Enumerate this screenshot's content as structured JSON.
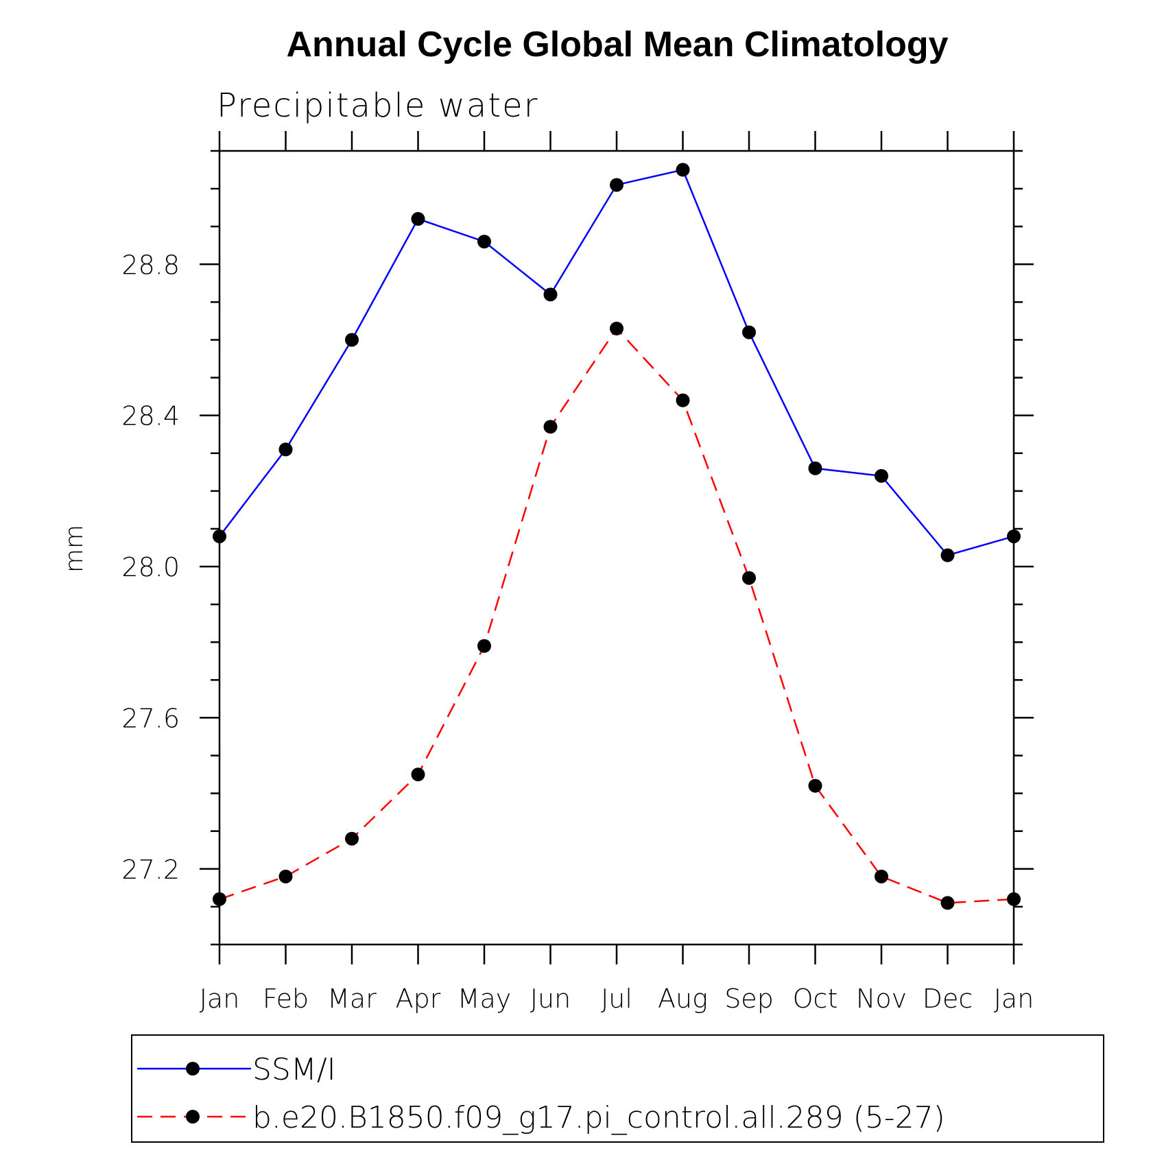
{
  "chart_data": {
    "type": "line",
    "title": "Annual Cycle Global Mean Climatology",
    "subtitle": "Precipitable water",
    "xlabel": "",
    "ylabel": "mm",
    "categories": [
      "Jan",
      "Feb",
      "Mar",
      "Apr",
      "May",
      "Jun",
      "Jul",
      "Aug",
      "Sep",
      "Oct",
      "Nov",
      "Dec",
      "Jan"
    ],
    "ylim": [
      27.0,
      29.1
    ],
    "yticks": [
      27.2,
      27.6,
      28.0,
      28.4,
      28.8
    ],
    "ytick_labels": [
      "27.2",
      "27.6",
      "28.0",
      "28.4",
      "28.8"
    ],
    "y_minor_step": 0.1,
    "grid": false,
    "legend_position": "bottom",
    "series": [
      {
        "name": "SSM/I",
        "color": "#0000ff",
        "line_style": "solid",
        "marker": "filled-circle",
        "values": [
          28.08,
          28.31,
          28.6,
          28.92,
          28.86,
          28.72,
          29.01,
          29.05,
          28.62,
          28.26,
          28.24,
          28.03,
          28.08
        ]
      },
      {
        "name": "b.e20.B1850.f09_g17.pi_control.all.289 (5-27)",
        "color": "#ff0000",
        "line_style": "dashed",
        "marker": "filled-circle",
        "values": [
          27.12,
          27.18,
          27.28,
          27.45,
          27.79,
          28.37,
          28.63,
          28.44,
          27.97,
          27.42,
          27.18,
          27.11,
          27.12
        ]
      }
    ]
  }
}
